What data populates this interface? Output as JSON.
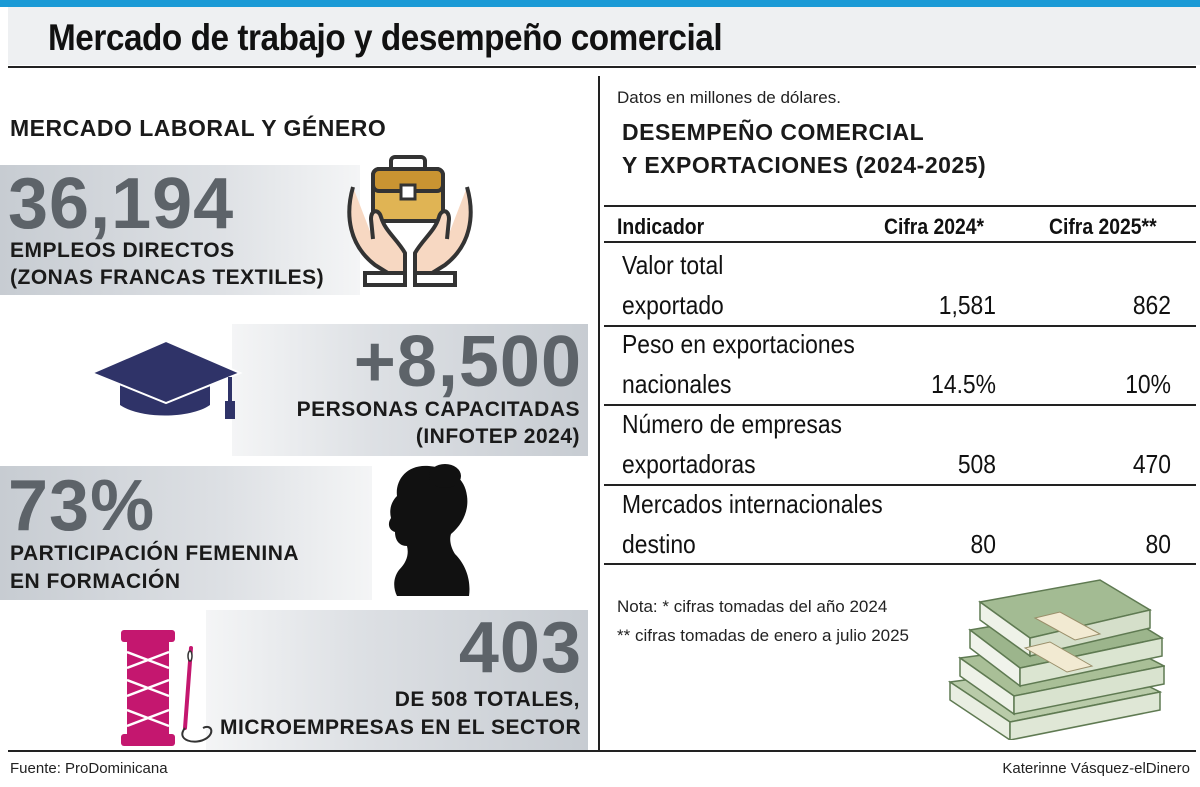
{
  "title": "Mercado de trabajo y desempeño comercial",
  "left": {
    "section_title": "MERCADO LABORAL Y GÉNERO",
    "stats": [
      {
        "value": "36,194",
        "caption_1": "EMPLEOS DIRECTOS",
        "caption_2": "(ZONAS FRANCAS TEXTILES)",
        "icon": "hands-briefcase-icon"
      },
      {
        "value": "+8,500",
        "caption_1": "PERSONAS CAPACITADAS",
        "caption_2": "(INFOTEP 2024)",
        "icon": "graduation-cap-icon"
      },
      {
        "value": "73%",
        "caption_1": "PARTICIPACIÓN FEMENINA",
        "caption_2": "EN FORMACIÓN",
        "icon": "woman-profile-icon"
      },
      {
        "value": "403",
        "caption_1": "DE 508 TOTALES,",
        "caption_2": "MICROEMPRESAS EN EL SECTOR",
        "icon": "thread-needle-icon"
      }
    ]
  },
  "right": {
    "units_note": "Datos en millones de dólares.",
    "section_title_1": "DESEMPEÑO COMERCIAL",
    "section_title_2": "Y EXPORTACIONES (2024-2025)",
    "table": {
      "headers": [
        "Indicador",
        "Cifra 2024*",
        "Cifra 2025**"
      ],
      "rows": [
        {
          "label_1": "Valor total",
          "label_2": "exportado",
          "v2024": "1,581",
          "v2025": "862"
        },
        {
          "label_1": "Peso en exportaciones",
          "label_2": "nacionales",
          "v2024": "14.5%",
          "v2025": "10%"
        },
        {
          "label_1": "Número de empresas",
          "label_2": "exportadoras",
          "v2024": "508",
          "v2025": "470"
        },
        {
          "label_1": "Mercados internacionales",
          "label_2": "destino",
          "v2024": "80",
          "v2025": "80"
        }
      ]
    },
    "note_1": "Nota: * cifras tomadas del año  2024",
    "note_2": "** cifras tomadas de enero a julio 2025",
    "image_icon": "money-stack-icon"
  },
  "footer": {
    "source": "Fuente: ProDominicana",
    "credit": "Katerinne Vásquez-elDinero"
  },
  "colors": {
    "accent": "#1a9ad6",
    "number_gray": "#5d6369",
    "cap_navy": "#2f3368",
    "thread_magenta": "#c4176f",
    "money_green": "#9cb58c"
  }
}
